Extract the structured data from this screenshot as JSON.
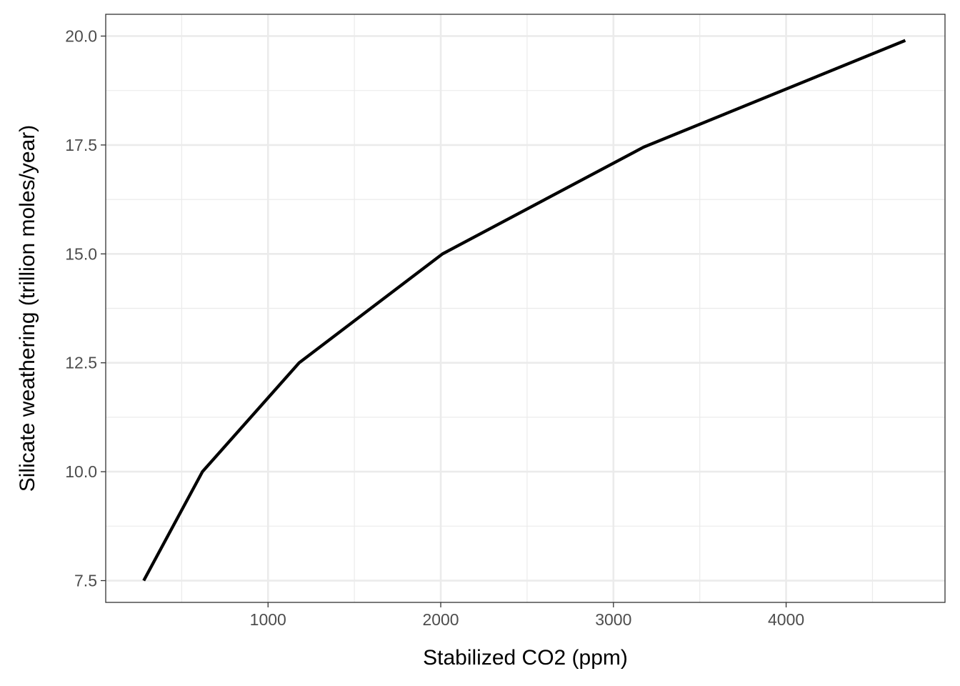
{
  "chart_data": {
    "type": "line",
    "title": "",
    "xlabel": "Stabilized CO2 (ppm)",
    "ylabel": "Silicate weathering (trillion moles/year)",
    "xlim": [
      60,
      4920
    ],
    "ylim": [
      7.0,
      20.5
    ],
    "x_ticks": [
      1000,
      2000,
      3000,
      4000
    ],
    "x_minor_ticks": [
      500,
      1500,
      2500,
      3500,
      4500
    ],
    "y_ticks": [
      7.5,
      10.0,
      12.5,
      15.0,
      17.5,
      20.0
    ],
    "y_tick_labels": [
      "7.5",
      "10.0",
      "12.5",
      "15.0",
      "17.5",
      "20.0"
    ],
    "y_minor_ticks": [
      8.75,
      11.25,
      13.75,
      16.25,
      18.75
    ],
    "grid": true,
    "legend": "none",
    "series": [
      {
        "color": "#000000",
        "x": [
          280,
          620,
          1180,
          2010,
          3175,
          4690
        ],
        "y": [
          7.5,
          10.0,
          12.5,
          15.0,
          17.45,
          19.9
        ]
      }
    ]
  }
}
